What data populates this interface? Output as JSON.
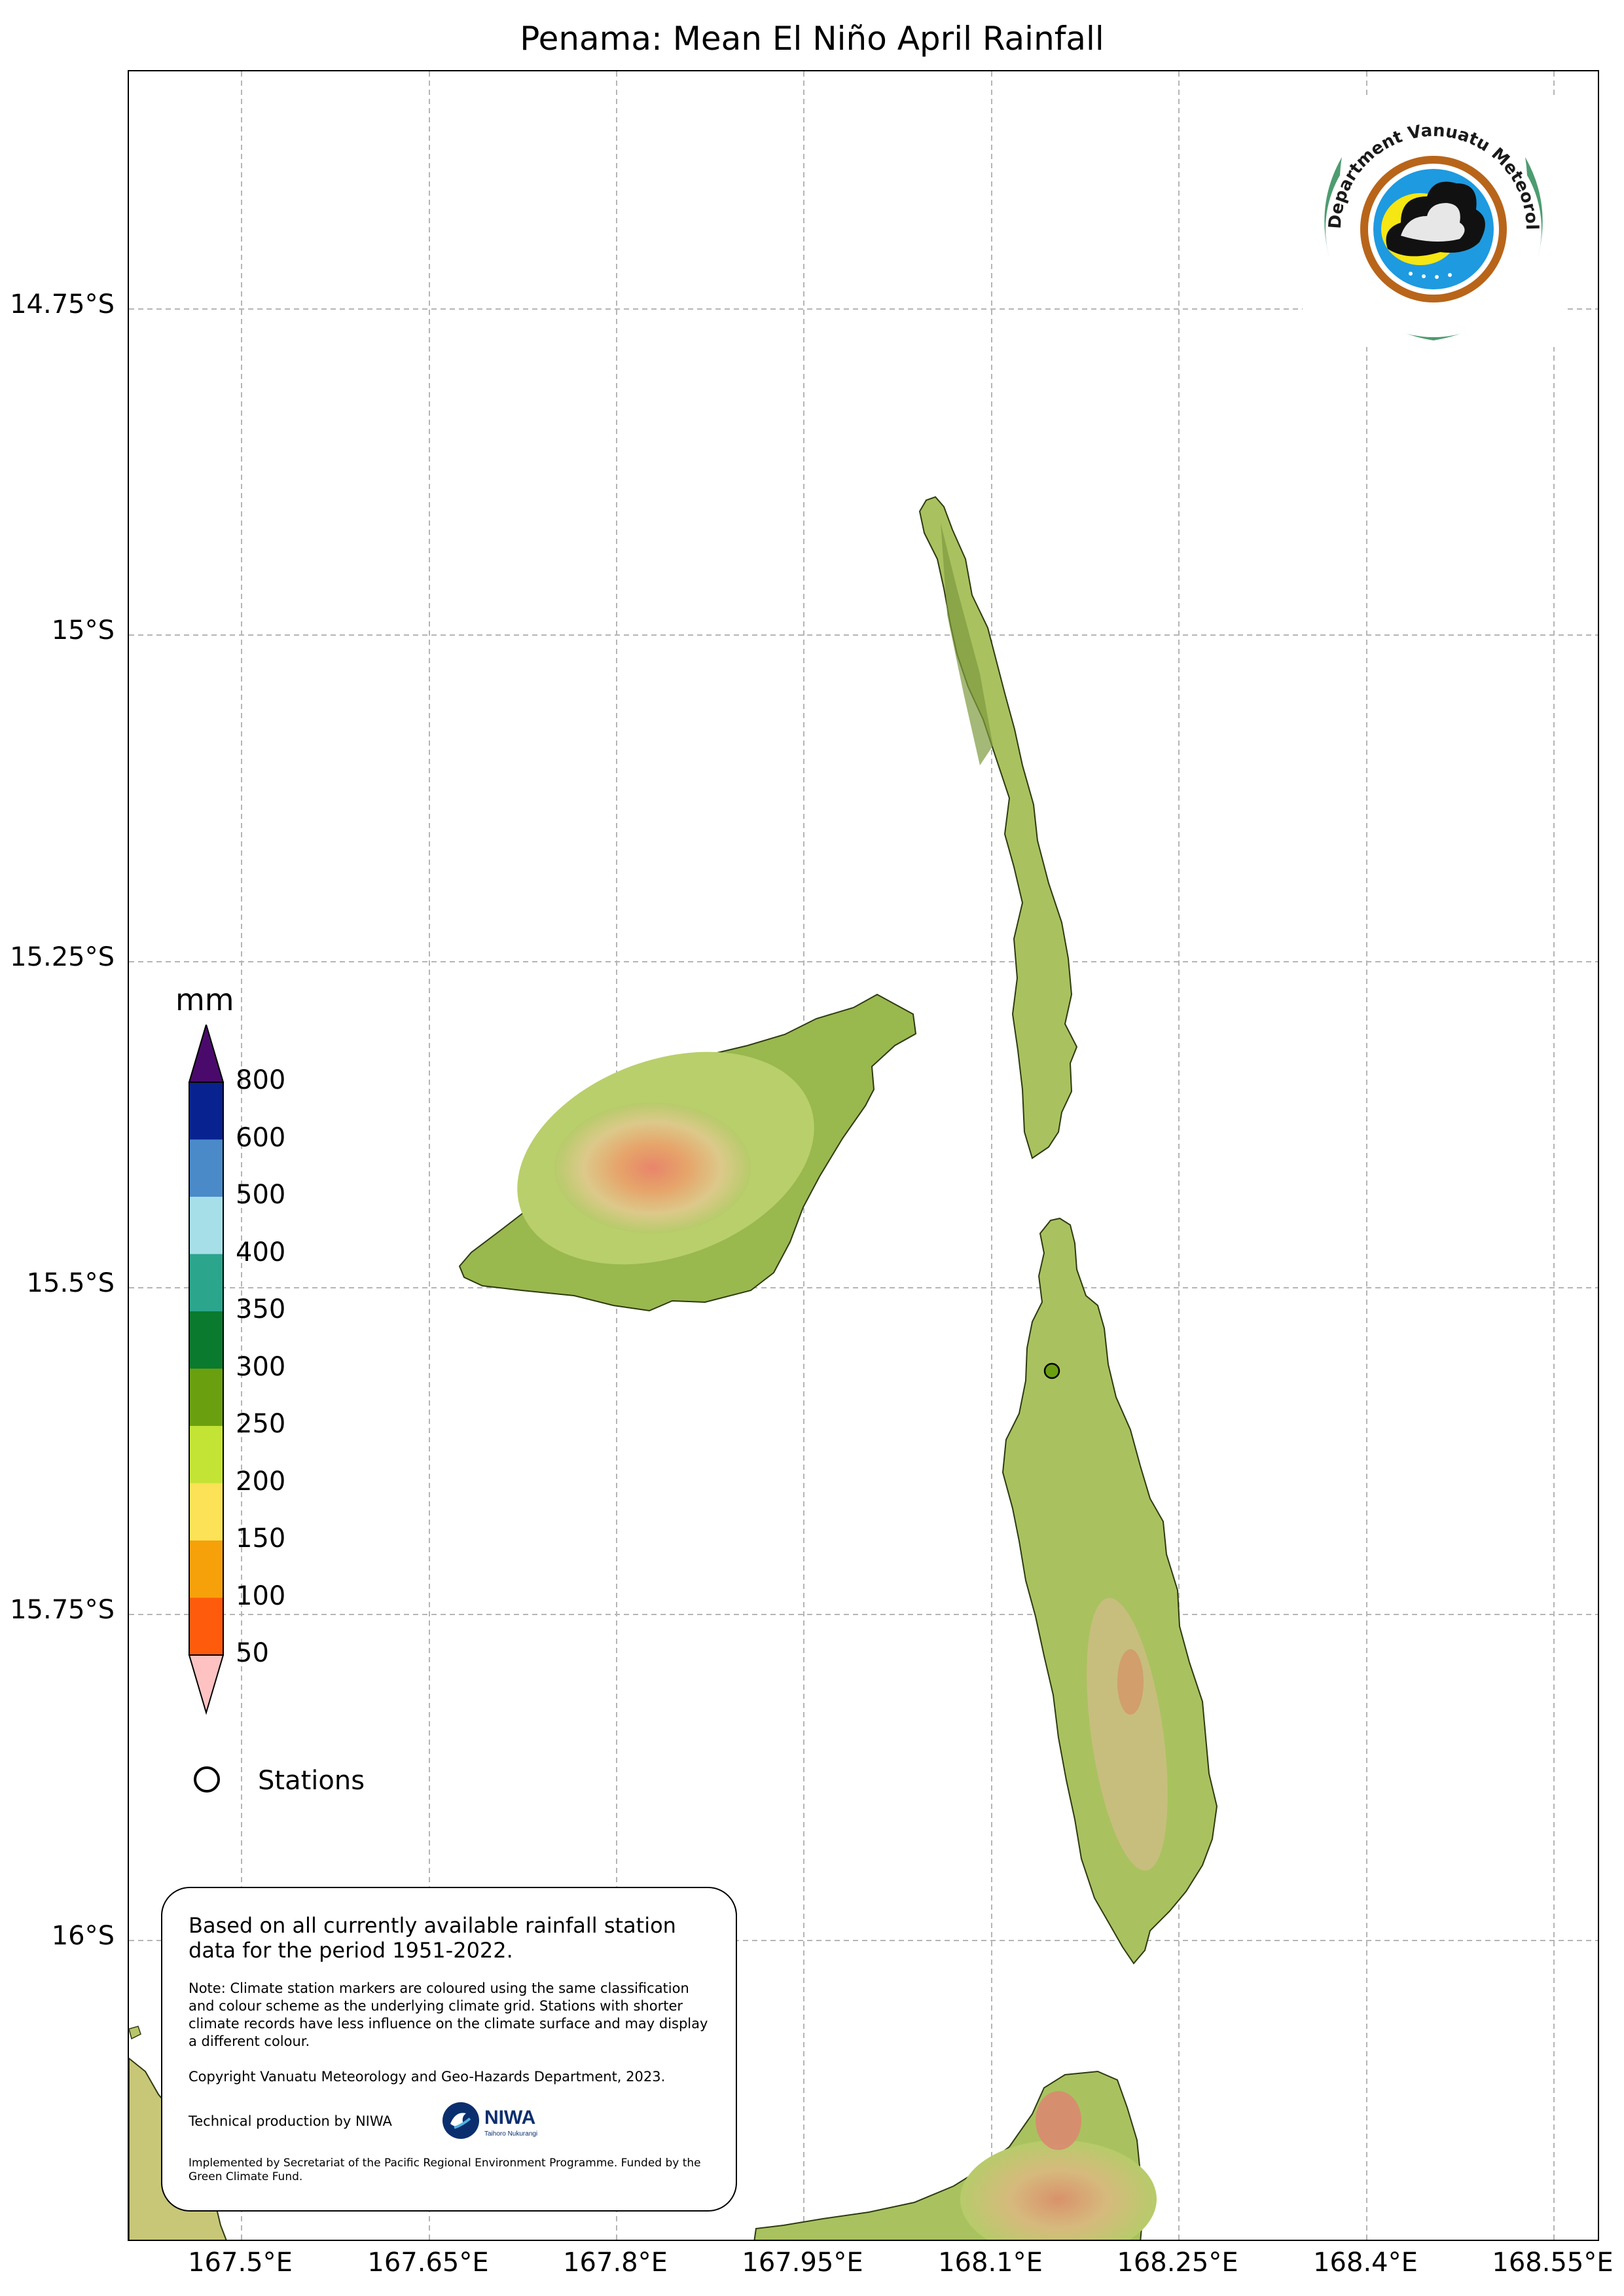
{
  "title": "Penama: Mean El Niño April Rainfall",
  "axes": {
    "y_ticks": [
      "14.75°S",
      "15°S",
      "15.25°S",
      "15.5°S",
      "15.75°S",
      "16°S"
    ],
    "x_ticks": [
      "167.5°E",
      "167.65°E",
      "167.8°E",
      "167.95°E",
      "168.1°E",
      "168.25°E",
      "168.4°E",
      "168.55°E"
    ],
    "gridlines": true
  },
  "colorbar": {
    "unit": "mm",
    "labels": [
      "800",
      "600",
      "500",
      "400",
      "350",
      "300",
      "250",
      "200",
      "150",
      "100",
      "50"
    ],
    "colors": [
      "#4a0a6b",
      "#08228f",
      "#4a8ac9",
      "#a6dfe8",
      "#2ba58c",
      "#0a7a2f",
      "#6aa010",
      "#c3e434",
      "#fbe257",
      "#f7a10a",
      "#ff5b0c",
      "#ffc2c2"
    ]
  },
  "legend": {
    "stations_label": "Stations"
  },
  "note_box": {
    "main": "Based on all currently available rainfall station data for the period 1951-2022.",
    "note": "Note: Climate station markers are coloured using the same classification and colour scheme as the underlying climate grid. Stations with shorter climate records have less influence on the climate surface and may display a different colour.",
    "copyright": "Copyright Vanuatu Meteorology and Geo-Hazards Department, 2023.",
    "technical": "Technical production by NIWA",
    "implemented": "Implemented by Secretariat of the Pacific Regional Environment Programme. Funded by the Green Climate Fund.",
    "niwa_logo_text": "NIWA",
    "niwa_logo_subtext": "Taihoro Nukurangi"
  },
  "logo": {
    "text": "Department Vanuatu Meteorology and Geo-Hazards"
  },
  "stations": [
    {
      "lat": -15.57,
      "lon": 168.15,
      "color": "#6aa010"
    }
  ]
}
